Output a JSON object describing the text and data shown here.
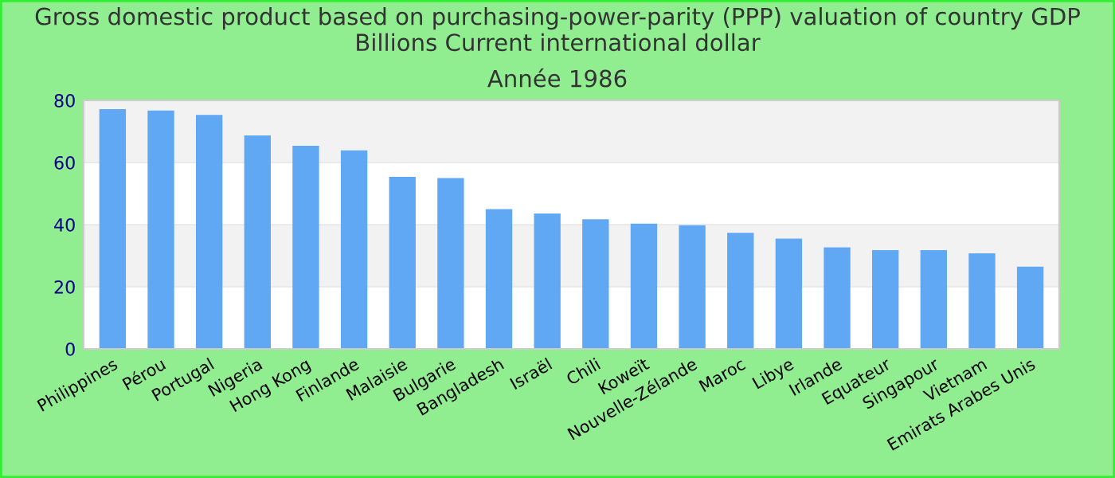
{
  "chart_data": {
    "type": "bar",
    "title": "Gross domestic product based on purchasing-power-parity (PPP) valuation of country GDP Billions Current international dollar",
    "subtitle": "Année 1986",
    "categories": [
      "Philippines",
      "Pérou",
      "Portugal",
      "Nigeria",
      "Hong Kong",
      "Finlande",
      "Malaisie",
      "Bulgarie",
      "Bangladesh",
      "Israël",
      "Chili",
      "Koweït",
      "Nouvelle-Zélande",
      "Maroc",
      "Libye",
      "Irlande",
      "Equateur",
      "Singapour",
      "Vietnam",
      "Emirats Arabes Unis"
    ],
    "values": [
      77.2,
      76.7,
      75.3,
      68.7,
      65.4,
      63.9,
      55.4,
      55.0,
      45.0,
      43.6,
      41.7,
      40.3,
      39.8,
      37.4,
      35.5,
      32.7,
      31.8,
      31.8,
      30.8,
      26.5
    ],
    "color": "#61a8f4",
    "ylim": [
      0,
      80
    ],
    "yticks": [
      0,
      20,
      40,
      60,
      80
    ],
    "grid": "y"
  }
}
